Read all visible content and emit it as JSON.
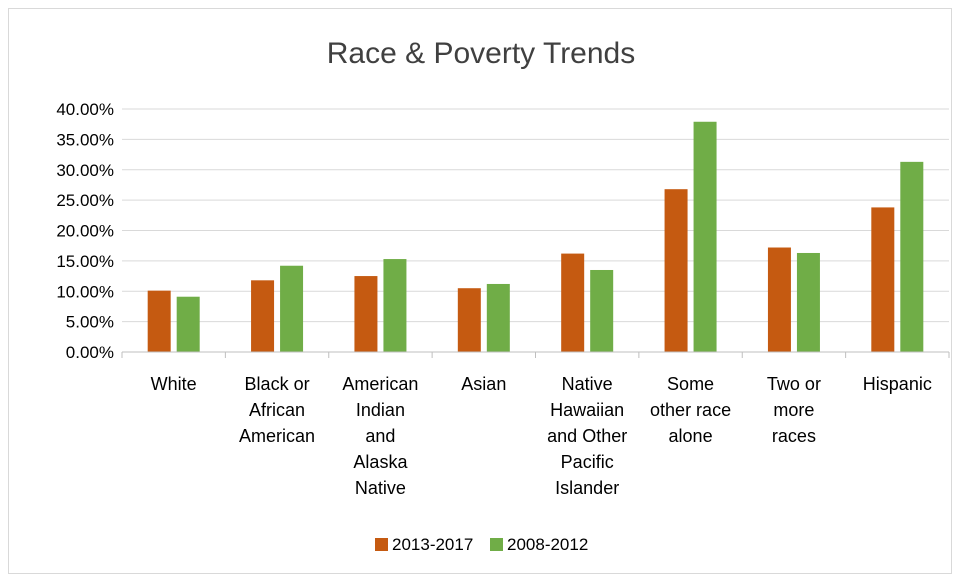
{
  "chart_data": {
    "type": "bar",
    "title": "Race & Poverty Trends",
    "categories": [
      "White",
      "Black or African American",
      "American Indian and Alaska Native",
      "Asian",
      "Native Hawaiian and Other Pacific Islander",
      "Some other race alone",
      "Two or more races",
      "Hispanic"
    ],
    "category_label_lines": [
      [
        "White"
      ],
      [
        "Black or",
        "African",
        "American"
      ],
      [
        "American",
        "Indian",
        "and",
        "Alaska",
        "Native"
      ],
      [
        "Asian"
      ],
      [
        "Native",
        "Hawaiian",
        "and Other",
        "Pacific",
        "Islander"
      ],
      [
        "Some",
        "other race",
        "alone"
      ],
      [
        "Two or",
        "more",
        "races"
      ],
      [
        "Hispanic"
      ]
    ],
    "series": [
      {
        "name": "2013-2017",
        "color": "#c55a11",
        "values": [
          0.101,
          0.118,
          0.125,
          0.105,
          0.162,
          0.268,
          0.172,
          0.238
        ]
      },
      {
        "name": "2008-2012",
        "color": "#70ad47",
        "values": [
          0.091,
          0.142,
          0.153,
          0.112,
          0.135,
          0.379,
          0.163,
          0.313
        ]
      }
    ],
    "ylim": [
      0,
      0.4
    ],
    "yticks": [
      "0.00%",
      "5.00%",
      "10.00%",
      "15.00%",
      "20.00%",
      "25.00%",
      "30.00%",
      "35.00%",
      "40.00%"
    ],
    "xlabel": "",
    "ylabel": "",
    "grid": true,
    "legend_position": "bottom"
  }
}
